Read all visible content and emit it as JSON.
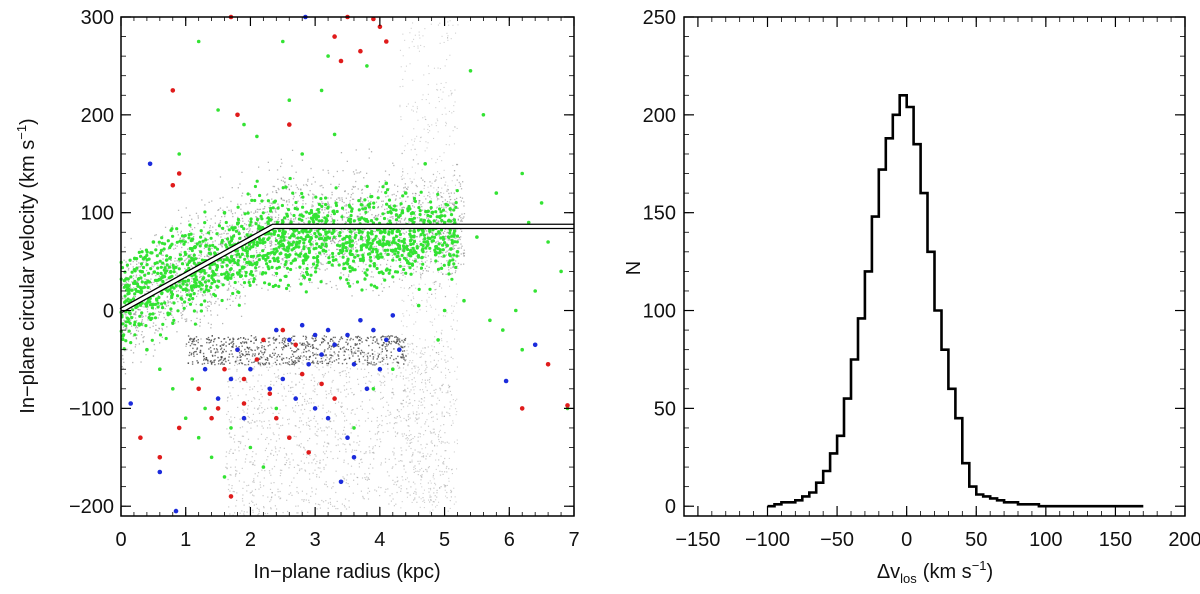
{
  "chart_data": [
    {
      "type": "scatter",
      "xlabel": "In−plane radius (kpc)",
      "ylabel_main": "In−plane circular velocity (km s",
      "ylabel_sup": "−1",
      "ylabel_close": ")",
      "xlim": [
        0,
        7
      ],
      "ylim": [
        -210,
        300
      ],
      "x_ticks": [
        0,
        1,
        2,
        3,
        4,
        5,
        6,
        7
      ],
      "x_tick_labels": [
        "0",
        "1",
        "2",
        "3",
        "4",
        "5",
        "6",
        "7"
      ],
      "y_ticks": [
        -200,
        -100,
        0,
        100,
        200,
        300
      ],
      "y_tick_labels": [
        "−200",
        "−100",
        "0",
        "100",
        "200",
        "300"
      ],
      "model_curve": {
        "x": [
          0,
          2.35,
          7
        ],
        "y": [
          0,
          86,
          86
        ]
      },
      "colors": {
        "background_model": "#7a7a7a",
        "green": "#33e333",
        "red": "#e01b1b",
        "blue": "#1b2bdc",
        "curve": "#ffffff",
        "curve_edge": "#000000"
      },
      "series": [
        {
          "color_key": "green",
          "points": [
            [
              1.2,
              275
            ],
            [
              2.5,
              275
            ],
            [
              3.2,
              260
            ],
            [
              3.8,
              250
            ],
            [
              1.5,
              205
            ],
            [
              2.6,
              215
            ],
            [
              3.1,
              225
            ],
            [
              1.9,
              190
            ],
            [
              2.1,
              178
            ],
            [
              0.9,
              160
            ],
            [
              5.4,
              245
            ],
            [
              5.6,
              200
            ],
            [
              6.2,
              140
            ],
            [
              6.5,
              110
            ],
            [
              6.3,
              90
            ],
            [
              6.6,
              70
            ],
            [
              6.8,
              40
            ],
            [
              6.4,
              20
            ],
            [
              6.1,
              0
            ],
            [
              5.9,
              -20
            ],
            [
              6.2,
              -40
            ],
            [
              5.7,
              -10
            ],
            [
              5.3,
              10
            ],
            [
              5.0,
              0
            ],
            [
              4.6,
              5
            ],
            [
              4.9,
              -30
            ],
            [
              5.2,
              60
            ],
            [
              5.5,
              75
            ],
            [
              0.4,
              -40
            ],
            [
              0.6,
              -60
            ],
            [
              0.8,
              -80
            ],
            [
              1.0,
              -110
            ],
            [
              1.2,
              -130
            ],
            [
              1.4,
              -150
            ],
            [
              1.6,
              -170
            ],
            [
              1.3,
              -100
            ],
            [
              1.7,
              -120
            ],
            [
              2.0,
              -140
            ],
            [
              2.2,
              -160
            ],
            [
              2.4,
              -100
            ],
            [
              3.9,
              -80
            ],
            [
              4.2,
              -60
            ],
            [
              3.6,
              -120
            ],
            [
              1.1,
              -70
            ],
            [
              6.9,
              -100
            ],
            [
              5.8,
              120
            ],
            [
              4.7,
              150
            ],
            [
              3.3,
              180
            ],
            [
              2.8,
              160
            ],
            [
              4.1,
              130
            ],
            [
              1.6,
              100
            ],
            [
              0.5,
              70
            ],
            [
              4.4,
              120
            ],
            [
              5.0,
              90
            ]
          ]
        },
        {
          "color_key": "red",
          "points": [
            [
              1.7,
              300
            ],
            [
              3.5,
              300
            ],
            [
              3.9,
              298
            ],
            [
              4.0,
              290
            ],
            [
              3.3,
              280
            ],
            [
              4.1,
              275
            ],
            [
              3.7,
              265
            ],
            [
              3.4,
              255
            ],
            [
              0.8,
              225
            ],
            [
              1.8,
              200
            ],
            [
              2.6,
              190
            ],
            [
              0.9,
              140
            ],
            [
              0.8,
              128
            ],
            [
              1.8,
              -40
            ],
            [
              1.6,
              -60
            ],
            [
              1.2,
              -80
            ],
            [
              1.5,
              -100
            ],
            [
              0.9,
              -120
            ],
            [
              0.3,
              -130
            ],
            [
              0.6,
              -150
            ],
            [
              1.7,
              -190
            ],
            [
              6.6,
              -55
            ],
            [
              6.2,
              -100
            ],
            [
              6.9,
              -97
            ],
            [
              2.6,
              -130
            ],
            [
              2.9,
              -145
            ],
            [
              2.4,
              -110
            ],
            [
              1.9,
              -70
            ],
            [
              2.2,
              -30
            ],
            [
              2.5,
              -20
            ],
            [
              2.7,
              -35
            ],
            [
              2.1,
              -50
            ],
            [
              3.1,
              -75
            ],
            [
              3.3,
              -90
            ],
            [
              2.8,
              -65
            ],
            [
              1.4,
              -110
            ],
            [
              2.3,
              -85
            ],
            [
              1.9,
              -95
            ]
          ]
        },
        {
          "color_key": "blue",
          "points": [
            [
              2.85,
              300
            ],
            [
              0.45,
              150
            ],
            [
              0.15,
              -95
            ],
            [
              0.6,
              -165
            ],
            [
              0.85,
              -205
            ],
            [
              1.7,
              -70
            ],
            [
              1.5,
              -90
            ],
            [
              1.9,
              -110
            ],
            [
              2.3,
              -80
            ],
            [
              2.7,
              -90
            ],
            [
              3.0,
              -100
            ],
            [
              3.2,
              -110
            ],
            [
              3.5,
              -130
            ],
            [
              3.6,
              -150
            ],
            [
              3.4,
              -175
            ],
            [
              3.8,
              -80
            ],
            [
              4.0,
              -60
            ],
            [
              4.3,
              -40
            ],
            [
              4.1,
              -30
            ],
            [
              3.9,
              -20
            ],
            [
              3.7,
              -10
            ],
            [
              3.5,
              -25
            ],
            [
              3.3,
              -35
            ],
            [
              3.1,
              -45
            ],
            [
              2.9,
              -55
            ],
            [
              2.6,
              -30
            ],
            [
              2.4,
              -20
            ],
            [
              2.8,
              -15
            ],
            [
              3.0,
              -25
            ],
            [
              3.2,
              -20
            ],
            [
              3.6,
              -55
            ],
            [
              4.2,
              -5
            ],
            [
              5.95,
              -72
            ],
            [
              6.4,
              -35
            ],
            [
              1.3,
              -60
            ],
            [
              2.0,
              -60
            ],
            [
              2.5,
              -70
            ],
            [
              1.8,
              -40
            ]
          ]
        }
      ]
    },
    {
      "type": "line",
      "step": true,
      "xlabel_delta": "Δv",
      "xlabel_sub": "los",
      "xlabel_unit": "(km s",
      "xlabel_sup": "−1",
      "xlabel_close": ")",
      "ylabel": "N",
      "xlim": [
        -160,
        200
      ],
      "ylim": [
        -5,
        250
      ],
      "x_ticks": [
        -150,
        -100,
        -50,
        0,
        50,
        100,
        150,
        200
      ],
      "x_tick_labels": [
        "−150",
        "−100",
        "−50",
        "0",
        "50",
        "100",
        "150",
        "200"
      ],
      "y_ticks": [
        0,
        50,
        100,
        150,
        200,
        250
      ],
      "y_tick_labels": [
        "0",
        "50",
        "100",
        "150",
        "200",
        "250"
      ],
      "x": [
        -100,
        -95,
        -90,
        -85,
        -80,
        -75,
        -70,
        -65,
        -60,
        -55,
        -50,
        -45,
        -40,
        -35,
        -30,
        -25,
        -20,
        -15,
        -10,
        -5,
        0,
        5,
        10,
        15,
        20,
        25,
        30,
        35,
        40,
        45,
        50,
        55,
        60,
        65,
        70,
        75,
        80,
        85,
        90,
        95,
        100,
        110,
        120,
        130,
        140,
        150,
        160,
        165
      ],
      "y": [
        0,
        1,
        2,
        2,
        3,
        5,
        7,
        12,
        18,
        27,
        36,
        55,
        75,
        96,
        120,
        148,
        172,
        188,
        200,
        210,
        204,
        185,
        160,
        130,
        100,
        80,
        60,
        45,
        22,
        10,
        6,
        5,
        4,
        3,
        2,
        2,
        1,
        1,
        1,
        0,
        0,
        0,
        0,
        0,
        0,
        0,
        0,
        0
      ]
    }
  ]
}
